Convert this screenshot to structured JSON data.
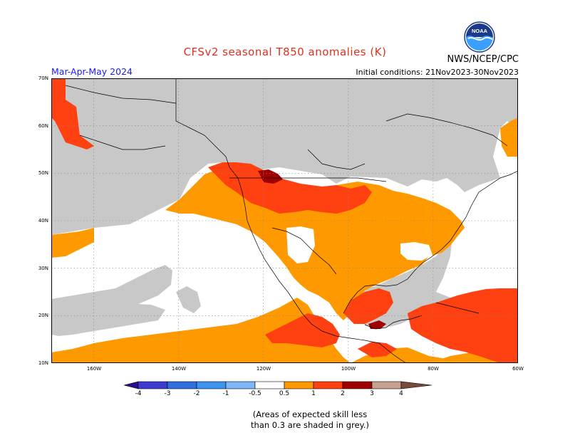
{
  "header": {
    "title": "CFSv2 seasonal T850 anomalies (K)",
    "agency": "NWS/NCEP/CPC",
    "season": "Mar-Apr-May 2024",
    "initial_conditions": "Initial conditions: 21Nov2023-30Nov2023",
    "logo_text": "NOAA"
  },
  "axes": {
    "lat_labels": [
      "70N",
      "60N",
      "50N",
      "40N",
      "30N",
      "20N",
      "10N"
    ],
    "lon_labels": [
      "160W",
      "140W",
      "120W",
      "100W",
      "80W",
      "60W"
    ]
  },
  "colorbar": {
    "labels": [
      "-4",
      "-3",
      "-2",
      "-1",
      "-0.5",
      "0.5",
      "1",
      "2",
      "3",
      "4"
    ],
    "colors": [
      "#2a0f8c",
      "#3c3cd0",
      "#2f6fe0",
      "#3f93f0",
      "#7cb8f7",
      "#ffffff",
      "#ff9900",
      "#ff4010",
      "#a00000",
      "#c8a090",
      "#7a4a3a"
    ]
  },
  "map_colors": {
    "skill_mask_grey": "#c8c8c8",
    "anom_0_5_to_1": "#ff9900",
    "anom_1_to_2": "#ff4010",
    "anom_2_to_3": "#a00000",
    "near_zero": "#ffffff"
  },
  "footnote": {
    "line1": "(Areas of expected skill less",
    "line2": "than 0.3 are shaded in grey.)"
  }
}
